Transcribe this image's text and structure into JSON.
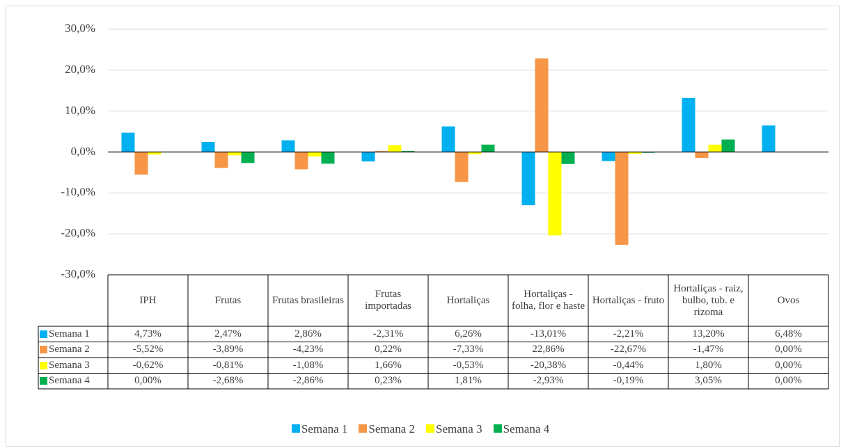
{
  "chart_data": {
    "type": "bar",
    "categories": [
      "IPH",
      "Frutas",
      "Frutas brasileiras",
      "Frutas importadas",
      "Hortaliças",
      "Hortaliças - folha, flor e haste",
      "Hortaliças - fruto",
      "Hortaliças - raiz, bulbo, tub. e rizoma",
      "Ovos"
    ],
    "series": [
      {
        "name": "Semana 1",
        "color": "#00b0f0",
        "values": [
          4.73,
          2.47,
          2.86,
          -2.31,
          6.26,
          -13.01,
          -2.21,
          13.2,
          6.48
        ],
        "value_labels": [
          "4,73%",
          "2,47%",
          "2,86%",
          "-2,31%",
          "6,26%",
          "-13,01%",
          "-2,21%",
          "13,20%",
          "6,48%"
        ]
      },
      {
        "name": "Semana 2",
        "color": "#f79646",
        "values": [
          -5.52,
          -3.89,
          -4.23,
          0.22,
          -7.33,
          22.86,
          -22.67,
          -1.47,
          0.0
        ],
        "value_labels": [
          "-5,52%",
          "-3,89%",
          "-4,23%",
          "0,22%",
          "-7,33%",
          "22,86%",
          "-22,67%",
          "-1,47%",
          "0,00%"
        ]
      },
      {
        "name": "Semana 3",
        "color": "#ffff00",
        "values": [
          -0.62,
          -0.81,
          -1.08,
          1.66,
          -0.53,
          -20.38,
          -0.44,
          1.8,
          0.0
        ],
        "value_labels": [
          "-0,62%",
          "-0,81%",
          "-1,08%",
          "1,66%",
          "-0,53%",
          "-20,38%",
          "-0,44%",
          "1,80%",
          "0,00%"
        ]
      },
      {
        "name": "Semana 4",
        "color": "#00b050",
        "values": [
          0.0,
          -2.68,
          -2.86,
          0.23,
          1.81,
          -2.93,
          -0.19,
          3.05,
          0.0
        ],
        "value_labels": [
          "0,00%",
          "-2,68%",
          "-2,86%",
          "0,23%",
          "1,81%",
          "-2,93%",
          "-0,19%",
          "3,05%",
          "0,00%"
        ]
      }
    ],
    "ylim": [
      -30,
      30
    ],
    "yticks": [
      {
        "value": -30,
        "label": "-30,0%"
      },
      {
        "value": -20,
        "label": "-20,0%"
      },
      {
        "value": -10,
        "label": "-10,0%"
      },
      {
        "value": 0,
        "label": "0,0%"
      },
      {
        "value": 10,
        "label": "10,0%"
      },
      {
        "value": 20,
        "label": "20,0%"
      },
      {
        "value": 30,
        "label": "30,0%"
      }
    ],
    "grid": true
  }
}
